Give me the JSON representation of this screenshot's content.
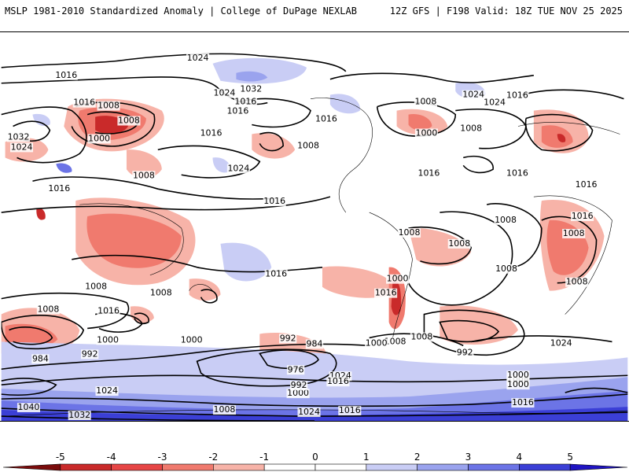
{
  "header": {
    "left": "MSLP 1981-2010 Standardized Anomaly | College of DuPage NEXLAB",
    "right": "12Z GFS | F198 Valid: 18Z TUE NOV 25 2025"
  },
  "isobar_labels": [
    "1024",
    "1016",
    "1016",
    "1008",
    "1032",
    "1000",
    "1008",
    "1024",
    "1008",
    "1016",
    "1024",
    "1016",
    "1016",
    "1032",
    "1008",
    "1024",
    "1016",
    "1016",
    "1024",
    "1008",
    "1024",
    "1016",
    "1008",
    "1000",
    "1016",
    "1016",
    "1008",
    "1016",
    "1016",
    "1008",
    "1008",
    "1008",
    "1016",
    "1008",
    "1008",
    "1008",
    "1000",
    "1008",
    "1016",
    "1016",
    "1008",
    "1000",
    "984",
    "992",
    "1016",
    "1008",
    "1024",
    "1040",
    "1032",
    "1008",
    "1000",
    "1000",
    "992",
    "984",
    "976",
    "1000",
    "992",
    "1024",
    "1016",
    "1008",
    "1008",
    "1000",
    "1000",
    "1016",
    "1024",
    "1024",
    "992",
    "1016"
  ],
  "colorbar": {
    "ticks": [
      "-5",
      "-4",
      "-3",
      "-2",
      "-1",
      "0",
      "1",
      "2",
      "3",
      "4",
      "5"
    ],
    "colors": [
      "#7a0c0c",
      "#c92a2a",
      "#e64545",
      "#f07a6e",
      "#f7b3a8",
      "#ffffff",
      "#ffffff",
      "#c9cdf5",
      "#9aa3ee",
      "#6c74e6",
      "#3b3fd6",
      "#1f14c2"
    ]
  }
}
